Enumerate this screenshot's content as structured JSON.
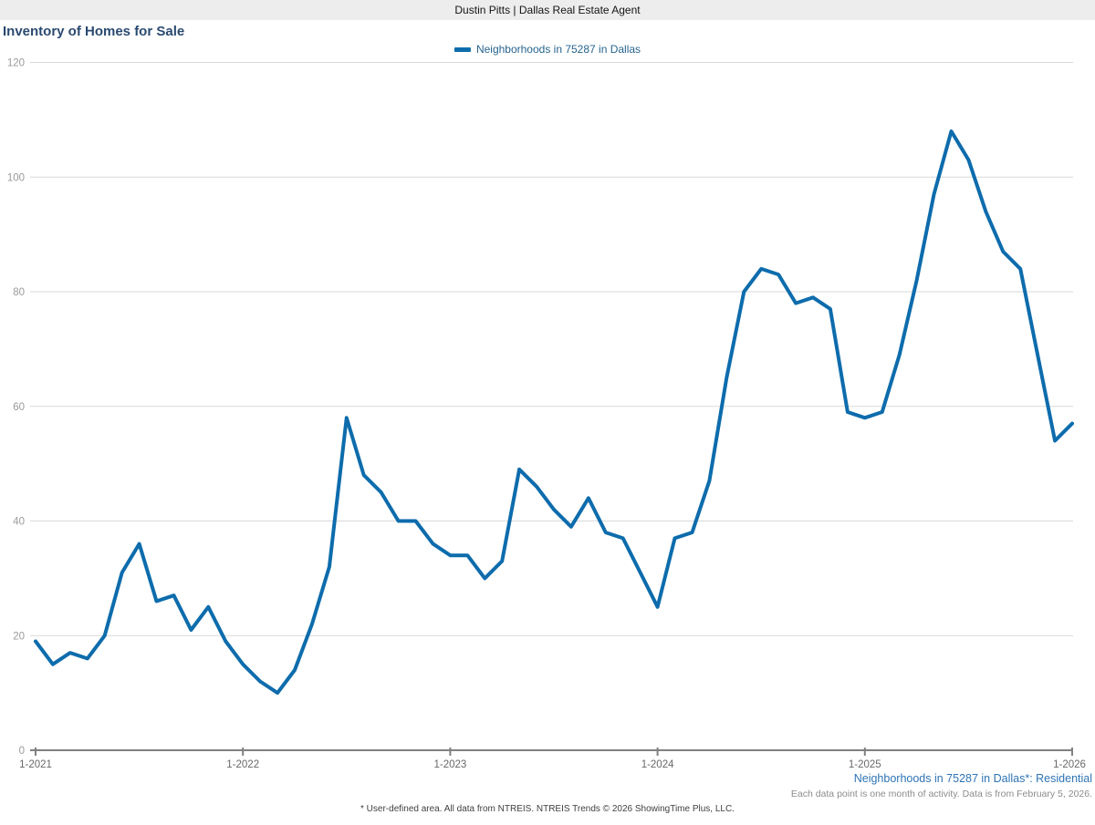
{
  "header": {
    "agent_banner": "Dustin Pitts | Dallas Real Estate Agent"
  },
  "chart": {
    "title": "Inventory of Homes for Sale",
    "legend_label": "Neighborhoods in 75287 in Dallas"
  },
  "footer": {
    "series_note": "Neighborhoods in 75287 in Dallas*: Residential",
    "data_note": "Each data point is one month of activity. Data is from February 5, 2026.",
    "disclaimer": "* User-defined area. All data from NTREIS. NTREIS Trends © 2026 ShowingTime Plus, LLC."
  },
  "colors": {
    "line": "#0d6cac",
    "gridline": "#d9d9d9",
    "axis": "#808080",
    "y_tick_label": "#9a9a9a",
    "x_tick_label": "#686868",
    "banner_bg": "#ededed",
    "title_text": "#2a4a70",
    "legend_text": "#26648e",
    "series_note_text": "#2e74b5"
  },
  "chart_data": {
    "type": "line",
    "title": "Inventory of Homes for Sale",
    "x_interval": "month",
    "x_start": "1-2021",
    "x_end": "1-2026",
    "x_tick_labels": [
      "1-2021",
      "1-2022",
      "1-2023",
      "1-2024",
      "1-2025",
      "1-2026"
    ],
    "y_ticks": [
      0,
      20,
      40,
      60,
      80,
      100,
      120
    ],
    "ylim": [
      0,
      120
    ],
    "grid": "horizontal",
    "legend_position": "top-center",
    "series": [
      {
        "name": "Neighborhoods in 75287 in Dallas",
        "values": [
          19,
          15,
          17,
          16,
          20,
          31,
          36,
          26,
          27,
          21,
          25,
          19,
          15,
          12,
          10,
          14,
          22,
          32,
          58,
          48,
          45,
          40,
          40,
          36,
          34,
          34,
          30,
          33,
          49,
          46,
          42,
          39,
          44,
          38,
          37,
          31,
          25,
          37,
          38,
          47,
          65,
          80,
          84,
          83,
          78,
          79,
          77,
          59,
          58,
          59,
          69,
          82,
          97,
          108,
          103,
          94,
          87,
          84,
          69,
          54,
          57
        ]
      }
    ]
  }
}
